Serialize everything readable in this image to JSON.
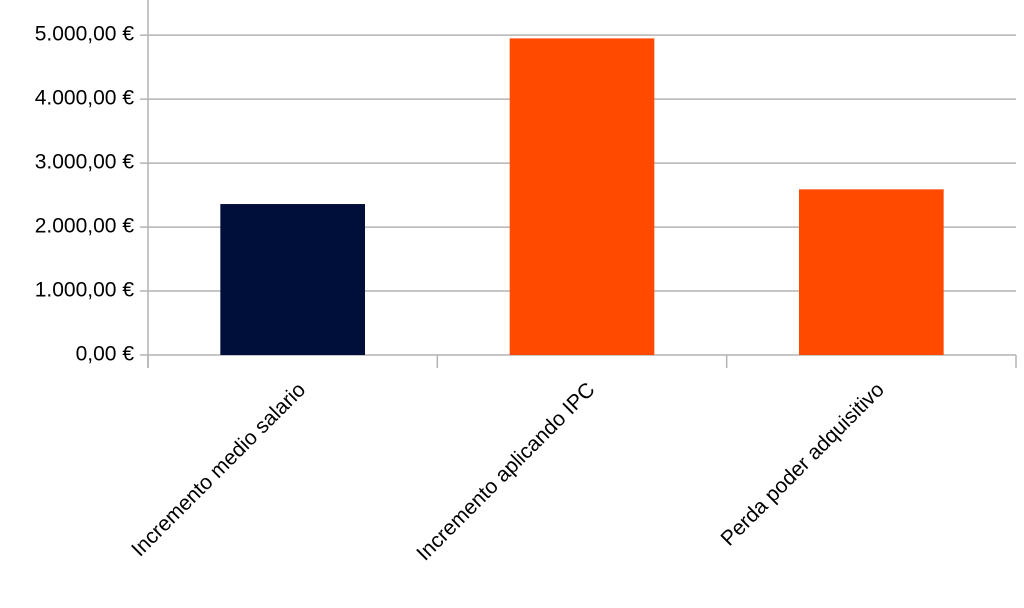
{
  "chart_data": {
    "type": "bar",
    "categories": [
      "Incremento medio salario",
      "Incremento aplicando IPC",
      "Perda poder adquisitivo"
    ],
    "values": [
      2360,
      4950,
      2590
    ],
    "colors": [
      "#000e3a",
      "#ff4a00",
      "#ff4a00"
    ],
    "ylim": [
      0,
      5550
    ],
    "yticks": [
      {
        "value": 0,
        "label": "0,00 €"
      },
      {
        "value": 1000,
        "label": "1.000,00 €"
      },
      {
        "value": 2000,
        "label": "2.000,00 €"
      },
      {
        "value": 3000,
        "label": "3.000,00 €"
      },
      {
        "value": 4000,
        "label": "4.000,00 €"
      },
      {
        "value": 5000,
        "label": "5.000,00 €"
      }
    ],
    "grid": true
  }
}
